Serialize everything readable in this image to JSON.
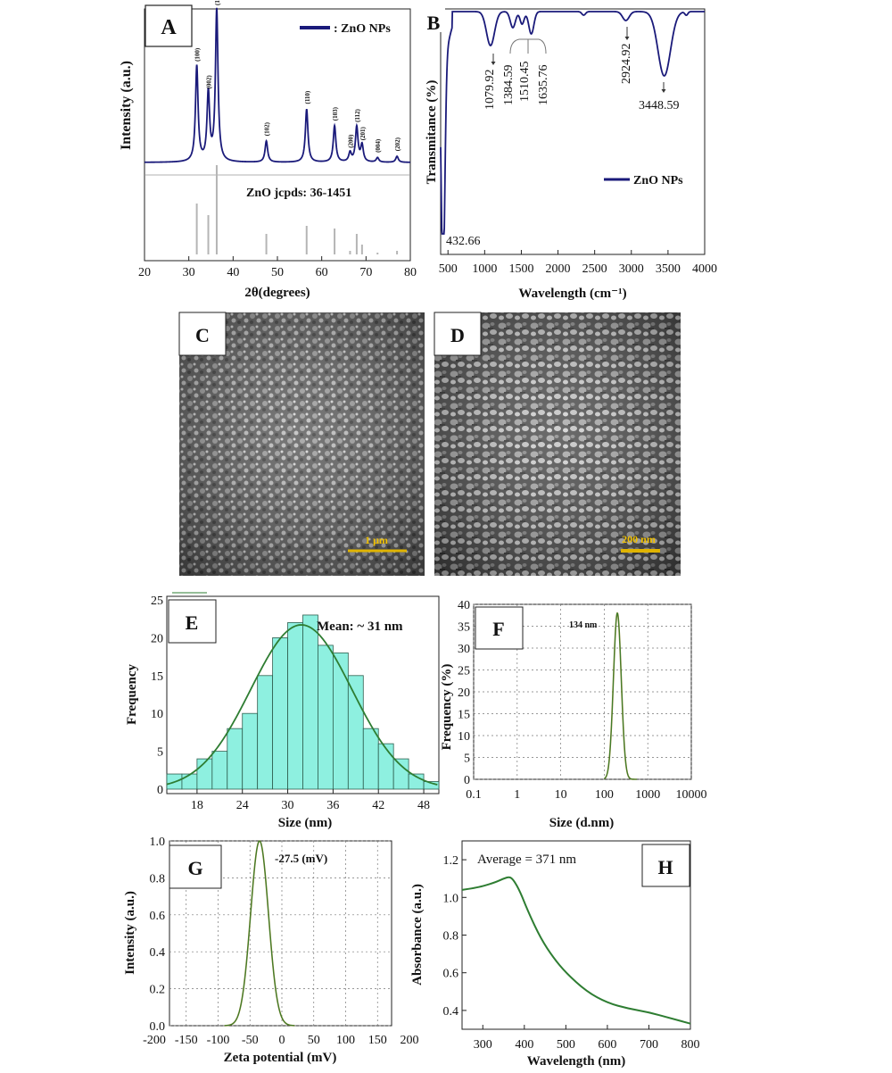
{
  "panel_labels": {
    "A": "A",
    "B": "B",
    "C": "C",
    "D": "D",
    "E": "E",
    "F": "F",
    "G": "G",
    "H": "H"
  },
  "colors": {
    "navy": "#1a1a7a",
    "green": "#2e7d32",
    "olive": "#7a7a1a",
    "teal_fill": "#8ef0e0",
    "ref_gray": "#b5b5b5",
    "scale_yellow": "#e0b400"
  },
  "chart_data": [
    {
      "id": "A",
      "type": "line",
      "xlabel": "2θ(degrees)",
      "ylabel": "Intensity (a.u.)",
      "xticks": [
        "20",
        "30",
        "40",
        "50",
        "60",
        "70",
        "80"
      ],
      "xlim": [
        20,
        80
      ],
      "legend": "ZnO NPs",
      "annotation": "ZnO jcpds: 36-1451",
      "peaks": [
        {
          "x": 31.8,
          "h": 0.63,
          "label": "(100)"
        },
        {
          "x": 34.4,
          "h": 0.45,
          "label": "(002)"
        },
        {
          "x": 36.3,
          "h": 1.0,
          "label": "(101)"
        },
        {
          "x": 47.5,
          "h": 0.14,
          "label": "(102)"
        },
        {
          "x": 56.6,
          "h": 0.35,
          "label": "(110)"
        },
        {
          "x": 62.9,
          "h": 0.24,
          "label": "(103)"
        },
        {
          "x": 66.4,
          "h": 0.06,
          "label": "(200)"
        },
        {
          "x": 67.9,
          "h": 0.23,
          "label": "(112)"
        },
        {
          "x": 69.1,
          "h": 0.11,
          "label": "(201)"
        },
        {
          "x": 72.6,
          "h": 0.03,
          "label": "(004)"
        },
        {
          "x": 77.0,
          "h": 0.04,
          "label": "(202)"
        }
      ],
      "reference_sticks": [
        {
          "x": 31.8,
          "h": 0.57
        },
        {
          "x": 34.4,
          "h": 0.44
        },
        {
          "x": 36.3,
          "h": 1.0
        },
        {
          "x": 47.5,
          "h": 0.23
        },
        {
          "x": 56.6,
          "h": 0.32
        },
        {
          "x": 62.9,
          "h": 0.29
        },
        {
          "x": 66.4,
          "h": 0.04
        },
        {
          "x": 67.9,
          "h": 0.23
        },
        {
          "x": 69.1,
          "h": 0.11
        },
        {
          "x": 72.6,
          "h": 0.02
        },
        {
          "x": 77.0,
          "h": 0.04
        }
      ]
    },
    {
      "id": "B",
      "type": "line",
      "xlabel": "Wavelength (cm⁻¹)",
      "ylabel": "Transmitance (%)",
      "xticks": [
        "500",
        "1000",
        "1500",
        "2000",
        "2500",
        "3000",
        "3500",
        "4000"
      ],
      "xlim": [
        400,
        4000
      ],
      "legend": "ZnO NPs",
      "bands": [
        {
          "x": 432.66,
          "label": "432.66"
        },
        {
          "x": 1079.92,
          "label": "1079.92"
        },
        {
          "x": 1384.59,
          "label": "1384.59"
        },
        {
          "x": 1510.45,
          "label": "1510.45"
        },
        {
          "x": 1635.76,
          "label": "1635.76"
        },
        {
          "x": 2924.92,
          "label": "2924.92"
        },
        {
          "x": 3448.59,
          "label": "3448.59"
        }
      ]
    },
    {
      "id": "E",
      "type": "bar",
      "xlabel": "Size (nm)",
      "ylabel": "Frequency",
      "xticks": [
        "18",
        "24",
        "30",
        "36",
        "42",
        "48"
      ],
      "yticks": [
        "0",
        "5",
        "10",
        "15",
        "20",
        "25"
      ],
      "xlim": [
        14,
        50
      ],
      "ylim": [
        0,
        25
      ],
      "annotation": "Mean: ~ 31 nm",
      "bin_width": 2,
      "bins": [
        {
          "x": 14,
          "value": 2
        },
        {
          "x": 16,
          "value": 2
        },
        {
          "x": 18,
          "value": 4
        },
        {
          "x": 20,
          "value": 5
        },
        {
          "x": 22,
          "value": 8
        },
        {
          "x": 24,
          "value": 10
        },
        {
          "x": 26,
          "value": 15
        },
        {
          "x": 28,
          "value": 20
        },
        {
          "x": 30,
          "value": 22
        },
        {
          "x": 32,
          "value": 23
        },
        {
          "x": 34,
          "value": 19
        },
        {
          "x": 36,
          "value": 18
        },
        {
          "x": 38,
          "value": 15
        },
        {
          "x": 40,
          "value": 8
        },
        {
          "x": 42,
          "value": 6
        },
        {
          "x": 44,
          "value": 4
        },
        {
          "x": 46,
          "value": 2
        },
        {
          "x": 48,
          "value": 1
        }
      ],
      "fit": {
        "mean": 31.8,
        "sd": 6.7,
        "peak": 21.7
      }
    },
    {
      "id": "F",
      "type": "line",
      "xlabel": "Size (d.nm)",
      "ylabel": "Frequency (%)",
      "xticks": [
        "0.1",
        "1",
        "10",
        "100",
        "1000",
        "10000"
      ],
      "yticks": [
        "0",
        "5",
        "10",
        "15",
        "20",
        "25",
        "30",
        "35",
        "40"
      ],
      "xlim": [
        0.1,
        10000
      ],
      "ylim": [
        0,
        40
      ],
      "xscale": "log",
      "annotation": "134 nm",
      "peak": {
        "x": 200,
        "y": 38
      }
    },
    {
      "id": "G",
      "type": "line",
      "xlabel": "Zeta potential (mV)",
      "ylabel": "Intensity (a.u.)",
      "xticks": [
        "-200",
        "-150",
        "-100",
        "-50",
        "0",
        "50",
        "100",
        "150",
        "200"
      ],
      "yticks": [
        "0.0",
        "0.2",
        "0.4",
        "0.6",
        "0.8",
        "1.0"
      ],
      "xlim": [
        -200,
        200
      ],
      "ylim": [
        0,
        1
      ],
      "annotation": "-27.5 (mV)",
      "peak": {
        "x": -35,
        "y": 1.0
      }
    },
    {
      "id": "H",
      "type": "line",
      "xlabel": "Wavelength (nm)",
      "ylabel": "Absorbance (a.u.)",
      "xticks": [
        "300",
        "400",
        "500",
        "600",
        "700",
        "800"
      ],
      "yticks": [
        "0.4",
        "0.6",
        "0.8",
        "1.0",
        "1.2"
      ],
      "xlim": [
        250,
        800
      ],
      "ylim": [
        0.3,
        1.3
      ],
      "annotation": "Average = 371 nm",
      "x": [
        250,
        280,
        300,
        330,
        350,
        365,
        375,
        390,
        410,
        440,
        470,
        500,
        550,
        600,
        650,
        700,
        750,
        800
      ],
      "y": [
        1.04,
        1.05,
        1.06,
        1.08,
        1.1,
        1.11,
        1.09,
        1.03,
        0.92,
        0.78,
        0.68,
        0.6,
        0.5,
        0.44,
        0.41,
        0.39,
        0.36,
        0.33
      ]
    }
  ],
  "sem": {
    "C": {
      "scale_label": "1 μm"
    },
    "D": {
      "scale_label": "200 nm"
    }
  }
}
